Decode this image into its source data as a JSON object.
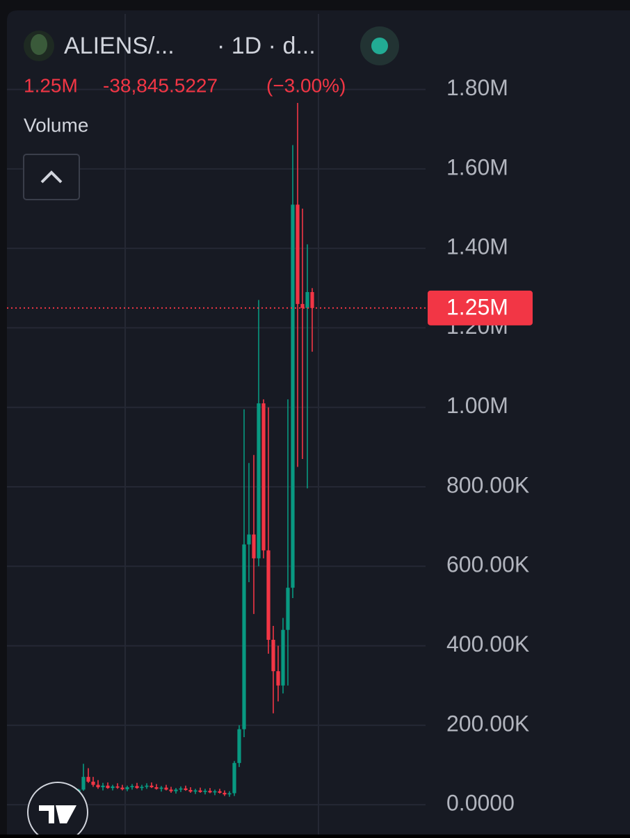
{
  "chart_data": {
    "type": "candlestick",
    "symbol": "ALIENS/...",
    "interval": "· 1D · d...",
    "change": "-38,845.5227",
    "change_pct": "(−3.00%)",
    "indicator": "Volume",
    "last_price": {
      "value": 1250000,
      "label": "1.25M"
    },
    "up_color": "#089981",
    "down_color": "#f23645",
    "grid": true,
    "ylim": [
      -75000,
      1990000
    ],
    "yticks": [
      {
        "value": 1800000,
        "label": "1.80M"
      },
      {
        "value": 1600000,
        "label": "1.60M"
      },
      {
        "value": 1400000,
        "label": "1.40M"
      },
      {
        "value": 1200000,
        "label": "1.20M"
      },
      {
        "value": 1000000,
        "label": "1.00M"
      },
      {
        "value": 800000,
        "label": "800.00K"
      },
      {
        "value": 600000,
        "label": "600.00K"
      },
      {
        "value": 400000,
        "label": "400.00K"
      },
      {
        "value": 200000,
        "label": "200.00K"
      },
      {
        "value": 0,
        "label": "0.0000"
      }
    ],
    "categories": [
      null,
      null,
      null,
      null,
      null,
      null,
      null,
      null,
      null,
      null,
      null,
      null,
      null,
      null,
      null,
      null,
      null,
      null,
      null,
      null,
      null,
      null,
      null,
      null,
      null,
      null,
      null,
      null,
      null,
      null,
      null,
      null,
      null,
      null,
      null,
      null,
      null,
      null,
      null,
      null,
      null,
      null,
      null,
      null,
      null,
      null,
      null,
      null,
      null
    ],
    "open": [
      20000,
      38000,
      70000,
      58000,
      50000,
      44000,
      48000,
      42000,
      46000,
      43000,
      39000,
      44000,
      47000,
      42000,
      45000,
      48000,
      44000,
      40000,
      43000,
      38000,
      34000,
      38000,
      41000,
      37000,
      33000,
      36000,
      32000,
      35000,
      31000,
      34000,
      30000,
      26000,
      29000,
      105000,
      190000,
      655000,
      680000,
      620000,
      1010000,
      640000,
      415000,
      336000,
      300000,
      440000,
      546000,
      1510000,
      1260000,
      1250000,
      1290000
    ],
    "high": [
      40000,
      103000,
      92000,
      70000,
      62000,
      55000,
      56000,
      50000,
      54000,
      50000,
      48000,
      52000,
      55000,
      50000,
      54000,
      56000,
      52000,
      47000,
      50000,
      45000,
      42000,
      46000,
      48000,
      44000,
      40000,
      43000,
      40000,
      42000,
      38000,
      40000,
      36000,
      34000,
      110000,
      200000,
      995000,
      860000,
      880000,
      1270000,
      1020000,
      1000000,
      450000,
      400000,
      470000,
      1020000,
      1660000,
      1766000,
      1500000,
      1410000,
      1300000
    ],
    "low": [
      15000,
      35000,
      55000,
      45000,
      40000,
      36000,
      40000,
      36000,
      40000,
      36000,
      34000,
      38000,
      40000,
      36000,
      40000,
      42000,
      38000,
      33000,
      36000,
      30000,
      28000,
      32000,
      35000,
      30000,
      27000,
      30000,
      26000,
      29000,
      24000,
      28000,
      22000,
      20000,
      22000,
      95000,
      170000,
      560000,
      480000,
      600000,
      620000,
      380000,
      230000,
      260000,
      280000,
      300000,
      520000,
      850000,
      870000,
      796000,
      1140000
    ],
    "close": [
      38000,
      70000,
      58000,
      50000,
      44000,
      48000,
      42000,
      46000,
      43000,
      39000,
      44000,
      47000,
      42000,
      45000,
      48000,
      44000,
      40000,
      43000,
      38000,
      34000,
      38000,
      41000,
      37000,
      33000,
      36000,
      32000,
      35000,
      31000,
      34000,
      30000,
      26000,
      29000,
      105000,
      190000,
      655000,
      680000,
      620000,
      1010000,
      640000,
      415000,
      336000,
      300000,
      440000,
      546000,
      1510000,
      1260000,
      1250000,
      1290000,
      1250000
    ]
  }
}
